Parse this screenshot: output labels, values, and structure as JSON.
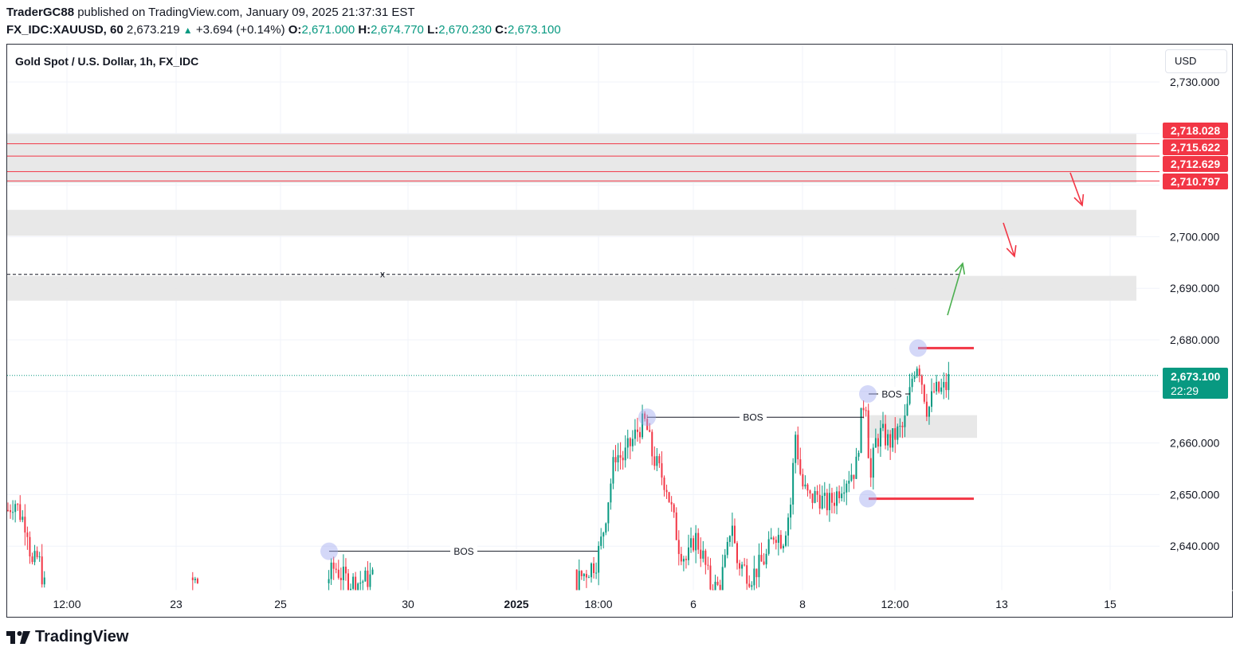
{
  "header": {
    "author": "TraderGC88",
    "published_text": "published on TradingView.com, January 09, 2025 21:37:31 EST",
    "symbol": "FX_IDC:XAUUSD, 60",
    "last": "2,673.219",
    "change": "+3.694 (+0.14%)",
    "open_label": "O:",
    "open": "2,671.000",
    "high_label": "H:",
    "high": "2,674.770",
    "low_label": "L:",
    "low": "2,670.230",
    "close_label": "C:",
    "close": "2,673.100",
    "up_color": "#089981"
  },
  "chart_title": "Gold Spot / U.S. Dollar, 1h, FX_IDC",
  "currency_button": "USD",
  "footer_logo": "TradingView",
  "chart_data": {
    "type": "candlestick",
    "title": "Gold Spot / U.S. Dollar, 1h, FX_IDC",
    "y_unit": "USD",
    "ylim": [
      2630.8,
      2735
    ],
    "y_ticks": [
      "2,730.000",
      "2,700.000",
      "2,690.000",
      "2,680.000",
      "2,660.000",
      "2,650.000",
      "2,640.000"
    ],
    "y_tick_values": [
      2730,
      2700,
      2690,
      2680,
      2660,
      2650,
      2640
    ],
    "x_ticks": [
      "12:00",
      "23",
      "25",
      "30",
      "2025",
      "18:00",
      "6",
      "8",
      "12:00",
      "13",
      "15"
    ],
    "current_price": {
      "label": "2,673.100",
      "countdown": "22:29",
      "value": 2673.1,
      "color": "#089981"
    },
    "price_labels": [
      {
        "label": "2,718.028",
        "value": 2718.028
      },
      {
        "label": "2,715.622",
        "value": 2715.622
      },
      {
        "label": "2,712.629",
        "value": 2712.629
      },
      {
        "label": "2,710.797",
        "value": 2710.797
      }
    ],
    "label_color": "#f23645",
    "zones": [
      {
        "low": 2710.4,
        "high": 2719.9
      },
      {
        "low": 2700.2,
        "high": 2705.2
      },
      {
        "low": 2687.6,
        "high": 2692.4
      },
      {
        "low": 2661.0,
        "high": 2665.4
      }
    ],
    "dashed_level": {
      "value": 2692.7,
      "marker": "x"
    },
    "bos_labels": [
      "BOS",
      "BOS",
      "BOS"
    ],
    "bos_levels": [
      2639.0,
      2665.0,
      2669.5
    ],
    "swing_levels": [
      2678.4,
      2649.2
    ],
    "candle_colors": {
      "up": "#089981",
      "down": "#f23645"
    },
    "arrow_colors": {
      "bullish": "#4caf50",
      "bearish": "#f23645"
    },
    "ohlc_series_sample": [
      {
        "o": 2647,
        "h": 2650,
        "l": 2643,
        "c": 2645
      },
      {
        "o": 2639,
        "h": 2641,
        "l": 2632,
        "c": 2633
      },
      {
        "o": 2636,
        "h": 2639,
        "l": 2633,
        "c": 2637
      },
      {
        "o": 2640,
        "h": 2655,
        "l": 2638,
        "c": 2652
      },
      {
        "o": 2652,
        "h": 2662,
        "l": 2650,
        "c": 2660
      },
      {
        "o": 2660,
        "h": 2666,
        "l": 2656,
        "c": 2664
      },
      {
        "o": 2659,
        "h": 2661,
        "l": 2648,
        "c": 2650
      },
      {
        "o": 2645,
        "h": 2647,
        "l": 2634,
        "c": 2636
      },
      {
        "o": 2634,
        "h": 2637,
        "l": 2631,
        "c": 2633
      },
      {
        "o": 2640,
        "h": 2664,
        "l": 2638,
        "c": 2662
      },
      {
        "o": 2650,
        "h": 2654,
        "l": 2646,
        "c": 2648
      },
      {
        "o": 2654,
        "h": 2670,
        "l": 2649,
        "c": 2668
      },
      {
        "o": 2664,
        "h": 2666,
        "l": 2655,
        "c": 2658
      },
      {
        "o": 2665,
        "h": 2678,
        "l": 2663,
        "c": 2672
      },
      {
        "o": 2669,
        "h": 2671,
        "l": 2662,
        "c": 2668
      },
      {
        "o": 2670,
        "h": 2674.8,
        "l": 2670.2,
        "c": 2673.1
      }
    ]
  }
}
